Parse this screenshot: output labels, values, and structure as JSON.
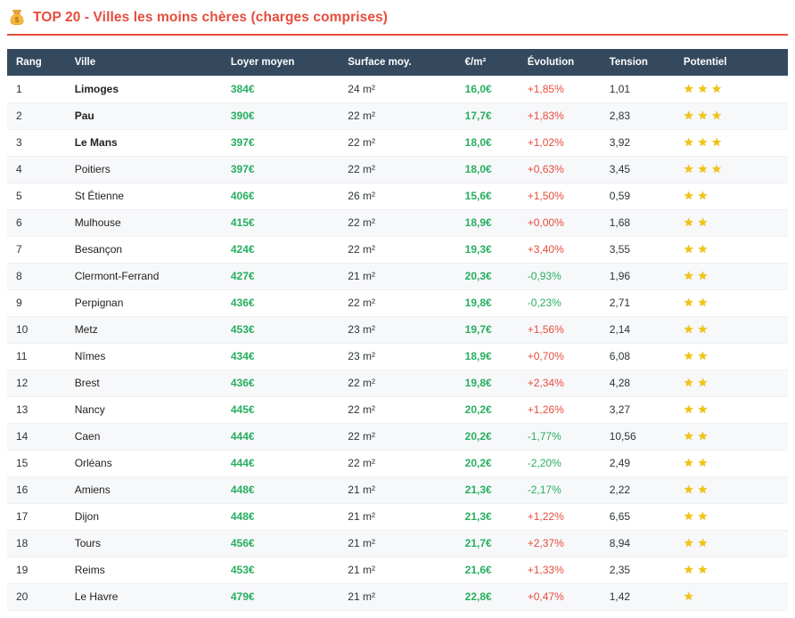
{
  "header": {
    "icon": "money-bag-icon",
    "title": "TOP 20 - Villes les moins chères (charges comprises)"
  },
  "colors": {
    "accent_red": "#e74c3c",
    "positive_green": "#27ae60",
    "header_bg": "#34495e",
    "star_gold": "#f1c40f"
  },
  "table": {
    "columns": [
      "Rang",
      "Ville",
      "Loyer moyen",
      "Surface moy.",
      "€/m²",
      "Évolution",
      "Tension",
      "Potentiel"
    ],
    "rows": [
      {
        "rank": "1",
        "city": "Limoges",
        "top3": true,
        "rent": "384€",
        "surface": "24 m²",
        "price_m2": "16,0€",
        "evolution": "+1,85%",
        "tension": "1,01",
        "stars": 3
      },
      {
        "rank": "2",
        "city": "Pau",
        "top3": true,
        "rent": "390€",
        "surface": "22 m²",
        "price_m2": "17,7€",
        "evolution": "+1,83%",
        "tension": "2,83",
        "stars": 3
      },
      {
        "rank": "3",
        "city": "Le Mans",
        "top3": true,
        "rent": "397€",
        "surface": "22 m²",
        "price_m2": "18,0€",
        "evolution": "+1,02%",
        "tension": "3,92",
        "stars": 3
      },
      {
        "rank": "4",
        "city": "Poitiers",
        "top3": false,
        "rent": "397€",
        "surface": "22 m²",
        "price_m2": "18,0€",
        "evolution": "+0,63%",
        "tension": "3,45",
        "stars": 3
      },
      {
        "rank": "5",
        "city": "St Étienne",
        "top3": false,
        "rent": "406€",
        "surface": "26 m²",
        "price_m2": "15,6€",
        "evolution": "+1,50%",
        "tension": "0,59",
        "stars": 2
      },
      {
        "rank": "6",
        "city": "Mulhouse",
        "top3": false,
        "rent": "415€",
        "surface": "22 m²",
        "price_m2": "18,9€",
        "evolution": "+0,00%",
        "tension": "1,68",
        "stars": 2
      },
      {
        "rank": "7",
        "city": "Besançon",
        "top3": false,
        "rent": "424€",
        "surface": "22 m²",
        "price_m2": "19,3€",
        "evolution": "+3,40%",
        "tension": "3,55",
        "stars": 2
      },
      {
        "rank": "8",
        "city": "Clermont-Ferrand",
        "top3": false,
        "rent": "427€",
        "surface": "21 m²",
        "price_m2": "20,3€",
        "evolution": "-0,93%",
        "tension": "1,96",
        "stars": 2
      },
      {
        "rank": "9",
        "city": "Perpignan",
        "top3": false,
        "rent": "436€",
        "surface": "22 m²",
        "price_m2": "19,8€",
        "evolution": "-0,23%",
        "tension": "2,71",
        "stars": 2
      },
      {
        "rank": "10",
        "city": "Metz",
        "top3": false,
        "rent": "453€",
        "surface": "23 m²",
        "price_m2": "19,7€",
        "evolution": "+1,56%",
        "tension": "2,14",
        "stars": 2
      },
      {
        "rank": "11",
        "city": "Nîmes",
        "top3": false,
        "rent": "434€",
        "surface": "23 m²",
        "price_m2": "18,9€",
        "evolution": "+0,70%",
        "tension": "6,08",
        "stars": 2
      },
      {
        "rank": "12",
        "city": "Brest",
        "top3": false,
        "rent": "436€",
        "surface": "22 m²",
        "price_m2": "19,8€",
        "evolution": "+2,34%",
        "tension": "4,28",
        "stars": 2
      },
      {
        "rank": "13",
        "city": "Nancy",
        "top3": false,
        "rent": "445€",
        "surface": "22 m²",
        "price_m2": "20,2€",
        "evolution": "+1,26%",
        "tension": "3,27",
        "stars": 2
      },
      {
        "rank": "14",
        "city": "Caen",
        "top3": false,
        "rent": "444€",
        "surface": "22 m²",
        "price_m2": "20,2€",
        "evolution": "-1,77%",
        "tension": "10,56",
        "stars": 2
      },
      {
        "rank": "15",
        "city": "Orléans",
        "top3": false,
        "rent": "444€",
        "surface": "22 m²",
        "price_m2": "20,2€",
        "evolution": "-2,20%",
        "tension": "2,49",
        "stars": 2
      },
      {
        "rank": "16",
        "city": "Amiens",
        "top3": false,
        "rent": "448€",
        "surface": "21 m²",
        "price_m2": "21,3€",
        "evolution": "-2,17%",
        "tension": "2,22",
        "stars": 2
      },
      {
        "rank": "17",
        "city": "Dijon",
        "top3": false,
        "rent": "448€",
        "surface": "21 m²",
        "price_m2": "21,3€",
        "evolution": "+1,22%",
        "tension": "6,65",
        "stars": 2
      },
      {
        "rank": "18",
        "city": "Tours",
        "top3": false,
        "rent": "456€",
        "surface": "21 m²",
        "price_m2": "21,7€",
        "evolution": "+2,37%",
        "tension": "8,94",
        "stars": 2
      },
      {
        "rank": "19",
        "city": "Reims",
        "top3": false,
        "rent": "453€",
        "surface": "21 m²",
        "price_m2": "21,6€",
        "evolution": "+1,33%",
        "tension": "2,35",
        "stars": 2
      },
      {
        "rank": "20",
        "city": "Le Havre",
        "top3": false,
        "rent": "479€",
        "surface": "21 m²",
        "price_m2": "22,8€",
        "evolution": "+0,47%",
        "tension": "1,42",
        "stars": 1
      }
    ]
  }
}
